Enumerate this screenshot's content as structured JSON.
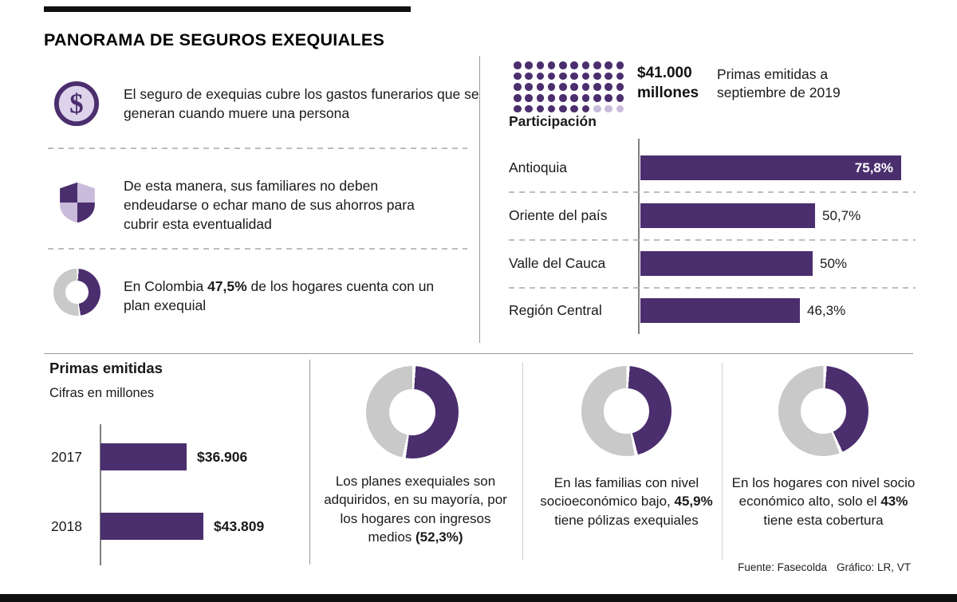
{
  "header": {
    "title": "PANORAMA DE SEGUROS EXEQUIALES"
  },
  "colors": {
    "purple": "#4b2e6e",
    "light_purple": "#c9bbdb",
    "donut_gray": "#c9c9c9"
  },
  "intro": {
    "item1": {
      "icon": "dollar-coin-icon",
      "text": "El seguro de exequias cubre los gastos funerarios que se generan cuando muere una persona"
    },
    "item2": {
      "icon": "shield-icon",
      "text": "De esta manera, sus familiares no deben endeudarse o echar mano de sus ahorros para cubrir esta eventualidad"
    },
    "item3": {
      "icon": "donut-chart-icon",
      "prefix": "En Colombia ",
      "bold": "47,5%",
      "suffix": " de los hogares cuenta con un plan exequial"
    }
  },
  "pictogram_panel": {
    "amount": "$41.000",
    "unit": "millones",
    "caption": "Primas emitidas a septiembre de 2019"
  },
  "footer": {
    "source": "Fuente: Fasecolda",
    "credit": "Gráfico: LR, VT"
  },
  "chart_data": [
    {
      "type": "bar",
      "title": "Participación",
      "orientation": "horizontal",
      "unit": "%",
      "categories": [
        "Antioquia",
        "Oriente del país",
        "Valle del Cauca",
        "Región Central"
      ],
      "values": [
        75.8,
        50.7,
        50,
        46.3
      ],
      "value_labels": [
        "75,8%",
        "50,7%",
        "50%",
        "46,3%"
      ],
      "axis_max": 80
    },
    {
      "type": "bar",
      "title": "Primas emitidas",
      "subtitle": "Cifras en millones",
      "orientation": "horizontal",
      "categories": [
        "2017",
        "2018"
      ],
      "values": [
        36906,
        43809
      ],
      "value_labels": [
        "$36.906",
        "$43.809"
      ],
      "axis_max": 45000
    },
    {
      "type": "pictogram",
      "value_label": "$41.000 millones",
      "caption": "Primas emitidas a septiembre de 2019",
      "dots_total": 50,
      "dots_filled": 47
    },
    {
      "type": "pie",
      "donut": true,
      "values": [
        47.5,
        52.5
      ],
      "highlight_label": "47,5%",
      "caption": "En Colombia 47,5% de los hogares cuenta con un plan exequial"
    },
    {
      "type": "pie",
      "donut": true,
      "values": [
        52.3,
        47.7
      ],
      "highlight_label": "52,3%",
      "text_prefix": "Los planes exequiales son adquiridos, en su mayoría, por los hogares con ingresos medios ",
      "text_bold": "(52,3%)",
      "text_suffix": ""
    },
    {
      "type": "pie",
      "donut": true,
      "values": [
        45.9,
        54.1
      ],
      "highlight_label": "45,9%",
      "text_prefix": "En las familias con nivel socioeconómico bajo, ",
      "text_bold": "45,9%",
      "text_suffix": " tiene pólizas exequiales"
    },
    {
      "type": "pie",
      "donut": true,
      "values": [
        43,
        57
      ],
      "highlight_label": "43%",
      "text_prefix": "En los hogares con nivel socio económico alto, solo el ",
      "text_bold": "43%",
      "text_suffix": " tiene esta cobertura"
    }
  ]
}
